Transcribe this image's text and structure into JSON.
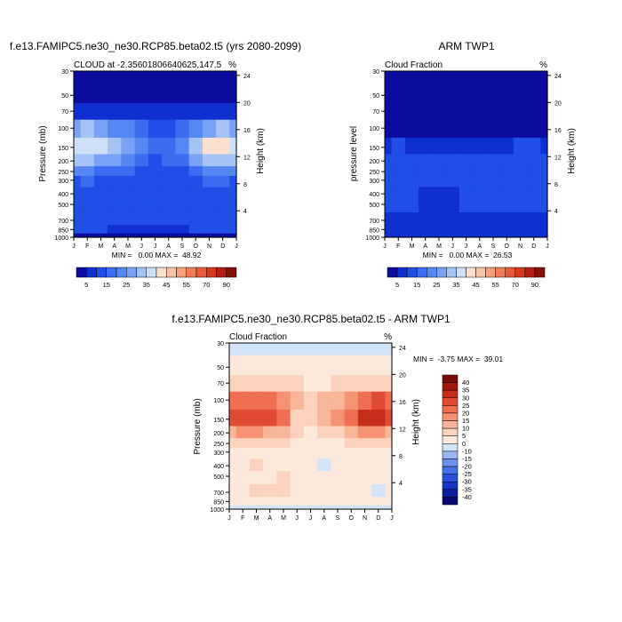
{
  "chart_data": [
    {
      "type": "heatmap",
      "title": "f.e13.FAMIPC5.ne30_ne30.RCP85.beta02.t5 (yrs 2080-2099)",
      "subtitle_left": "CLOUD at -2.35601806640625,147.5",
      "subtitle_right": "%",
      "ylabel": "Pressure (mb)",
      "ylabel_right": "Height (km)",
      "x_ticks": [
        "J",
        "F",
        "M",
        "A",
        "M",
        "J",
        "J",
        "A",
        "S",
        "O",
        "N",
        "D",
        "J"
      ],
      "y_ticks": [
        30,
        50,
        70,
        100,
        150,
        200,
        250,
        300,
        400,
        500,
        700,
        850,
        1000
      ],
      "y_right_ticks": [
        24,
        20,
        16,
        12,
        8,
        4
      ],
      "stats": "MIN =   0.00 MAX =  48.92",
      "colorbar_labels": [
        "5",
        "15",
        "25",
        "35",
        "45",
        "55",
        "70",
        "90"
      ],
      "pressure_levels": [
        30,
        50,
        70,
        100,
        150,
        200,
        250,
        300,
        400,
        500,
        700,
        850,
        1000
      ],
      "months": [
        "J",
        "F",
        "M",
        "A",
        "M",
        "J",
        "J",
        "A",
        "S",
        "O",
        "N",
        "D",
        "J"
      ],
      "values": [
        [
          1,
          1,
          1,
          1,
          1,
          1,
          1,
          1,
          1,
          1,
          1,
          1,
          1
        ],
        [
          2,
          2,
          2,
          2,
          2,
          2,
          2,
          2,
          2,
          2,
          2,
          2,
          2
        ],
        [
          8,
          8,
          7,
          7,
          6,
          5,
          5,
          5,
          6,
          7,
          8,
          8,
          8
        ],
        [
          28,
          30,
          27,
          24,
          20,
          16,
          12,
          12,
          15,
          22,
          28,
          30,
          28
        ],
        [
          36,
          38,
          36,
          33,
          26,
          20,
          17,
          18,
          23,
          33,
          42,
          40,
          36
        ],
        [
          30,
          31,
          29,
          27,
          22,
          17,
          14,
          15,
          19,
          27,
          33,
          32,
          30
        ],
        [
          20,
          20,
          19,
          17,
          16,
          13,
          12,
          12,
          14,
          18,
          20,
          20,
          20
        ],
        [
          14,
          15,
          14,
          13,
          13,
          12,
          11,
          12,
          13,
          14,
          15,
          15,
          14
        ],
        [
          12,
          13,
          13,
          13,
          13,
          12,
          12,
          13,
          13,
          13,
          14,
          13,
          12
        ],
        [
          13,
          13,
          13,
          13,
          13,
          12,
          12,
          13,
          13,
          13,
          14,
          14,
          13
        ],
        [
          12,
          12,
          13,
          12,
          11,
          11,
          11,
          11,
          12,
          12,
          12,
          12,
          12
        ],
        [
          10,
          10,
          10,
          9,
          8,
          9,
          9,
          9,
          9,
          10,
          10,
          10,
          10
        ],
        [
          4,
          4,
          4,
          4,
          4,
          4,
          4,
          4,
          4,
          4,
          4,
          4,
          4
        ]
      ]
    },
    {
      "type": "heatmap",
      "title": "ARM TWP1",
      "subtitle_left": "Cloud Fraction",
      "subtitle_right": "%",
      "ylabel": "pressure level",
      "ylabel_right": "Height (km)",
      "x_ticks": [
        "J",
        "F",
        "M",
        "A",
        "M",
        "J",
        "J",
        "A",
        "S",
        "O",
        "N",
        "D",
        "J"
      ],
      "y_ticks": [
        30,
        50,
        70,
        100,
        150,
        200,
        250,
        300,
        400,
        500,
        700,
        850,
        1000
      ],
      "y_right_ticks": [
        24,
        20,
        16,
        12,
        8,
        4
      ],
      "stats": "MIN =   0.00 MAX =  26.53",
      "colorbar_labels": [
        "5",
        "15",
        "25",
        "35",
        "45",
        "55",
        "70",
        "90"
      ],
      "pressure_levels": [
        30,
        50,
        70,
        100,
        150,
        200,
        250,
        300,
        400,
        500,
        700,
        850,
        1000
      ],
      "months": [
        "J",
        "F",
        "M",
        "A",
        "M",
        "J",
        "J",
        "A",
        "S",
        "O",
        "N",
        "D",
        "J"
      ],
      "values": [
        [
          0,
          0,
          0,
          0,
          0,
          0,
          0,
          0,
          0,
          0,
          0,
          0,
          0
        ],
        [
          0,
          0,
          0,
          0,
          0,
          0,
          0,
          0,
          0,
          0,
          0,
          0,
          0
        ],
        [
          1,
          1,
          1,
          1,
          1,
          1,
          1,
          1,
          1,
          1,
          1,
          1,
          1
        ],
        [
          3,
          3,
          3,
          3,
          3,
          2,
          2,
          2,
          2,
          3,
          3,
          3,
          3
        ],
        [
          9,
          10,
          9,
          9,
          9,
          8,
          7,
          7,
          8,
          9,
          10,
          10,
          9
        ],
        [
          12,
          12,
          12,
          12,
          12,
          11,
          10,
          10,
          11,
          12,
          12,
          12,
          12
        ],
        [
          12,
          12,
          12,
          11,
          11,
          10,
          10,
          10,
          11,
          11,
          12,
          12,
          12
        ],
        [
          11,
          11,
          11,
          11,
          10,
          10,
          10,
          10,
          10,
          11,
          11,
          11,
          11
        ],
        [
          10,
          10,
          10,
          9,
          7,
          9,
          10,
          10,
          10,
          10,
          10,
          10,
          10
        ],
        [
          10,
          10,
          10,
          9,
          6,
          9,
          10,
          10,
          10,
          10,
          10,
          10,
          10
        ],
        [
          9,
          9,
          8,
          7,
          6,
          8,
          8,
          8,
          8,
          8,
          8,
          8,
          9
        ],
        [
          8,
          8,
          7,
          6,
          6,
          7,
          7,
          7,
          7,
          7,
          7,
          7,
          8
        ],
        [
          5,
          5,
          5,
          5,
          5,
          5,
          5,
          5,
          5,
          5,
          5,
          5,
          5
        ]
      ]
    },
    {
      "type": "heatmap",
      "title": "f.e13.FAMIPC5.ne30_ne30.RCP85.beta02.t5 - ARM TWP1",
      "subtitle_left": "Cloud Fraction",
      "subtitle_right": "%",
      "ylabel": "Pressure (mb)",
      "ylabel_right": "Height (km)",
      "x_ticks": [
        "J",
        "F",
        "M",
        "A",
        "M",
        "J",
        "J",
        "A",
        "S",
        "O",
        "N",
        "D",
        "J"
      ],
      "y_ticks": [
        30,
        50,
        70,
        100,
        150,
        200,
        250,
        300,
        400,
        500,
        700,
        850,
        1000
      ],
      "y_right_ticks": [
        24,
        20,
        16,
        12,
        8,
        4
      ],
      "stats": "MIN =  -3.75 MAX =  39.01",
      "colorbar_labels": [
        "40",
        "35",
        "30",
        "25",
        "20",
        "15",
        "10",
        "5",
        "0",
        "-10",
        "-15",
        "-20",
        "-25",
        "-30",
        "-35",
        "-40"
      ],
      "pressure_levels": [
        30,
        50,
        70,
        100,
        150,
        200,
        250,
        300,
        400,
        500,
        700,
        850,
        1000
      ],
      "months": [
        "J",
        "F",
        "M",
        "A",
        "M",
        "J",
        "J",
        "A",
        "S",
        "O",
        "N",
        "D",
        "J"
      ],
      "values": [
        [
          -1,
          -1,
          -1,
          -1,
          -1,
          -1,
          -1,
          -1,
          -1,
          -1,
          -1,
          -1,
          -1
        ],
        [
          1,
          1,
          1,
          1,
          1,
          1,
          1,
          1,
          1,
          1,
          1,
          1,
          1
        ],
        [
          6,
          6,
          6,
          6,
          5,
          5,
          4,
          4,
          5,
          6,
          6,
          6,
          6
        ],
        [
          22,
          24,
          22,
          20,
          15,
          11,
          9,
          10,
          13,
          19,
          24,
          26,
          22
        ],
        [
          26,
          28,
          27,
          26,
          22,
          8,
          9,
          10,
          15,
          24,
          33,
          30,
          26
        ],
        [
          14,
          16,
          15,
          13,
          10,
          6,
          4,
          5,
          8,
          13,
          18,
          17,
          14
        ],
        [
          6,
          7,
          7,
          6,
          5,
          3,
          3,
          3,
          4,
          6,
          7,
          7,
          6
        ],
        [
          3,
          4,
          4,
          4,
          4,
          3,
          2,
          2,
          3,
          3,
          4,
          4,
          3
        ],
        [
          2,
          3,
          5,
          4,
          3,
          3,
          2,
          -1,
          2,
          3,
          4,
          3,
          2
        ],
        [
          3,
          3,
          3,
          4,
          6,
          3,
          2,
          3,
          3,
          3,
          4,
          4,
          3
        ],
        [
          3,
          3,
          5,
          5,
          5,
          3,
          3,
          3,
          4,
          4,
          4,
          -1,
          3
        ],
        [
          2,
          2,
          3,
          3,
          2,
          2,
          2,
          2,
          2,
          3,
          3,
          3,
          2
        ],
        [
          -1,
          -1,
          -1,
          -1,
          -1,
          -1,
          -1,
          -1,
          -1,
          -1,
          -1,
          -1,
          -1
        ]
      ]
    }
  ]
}
